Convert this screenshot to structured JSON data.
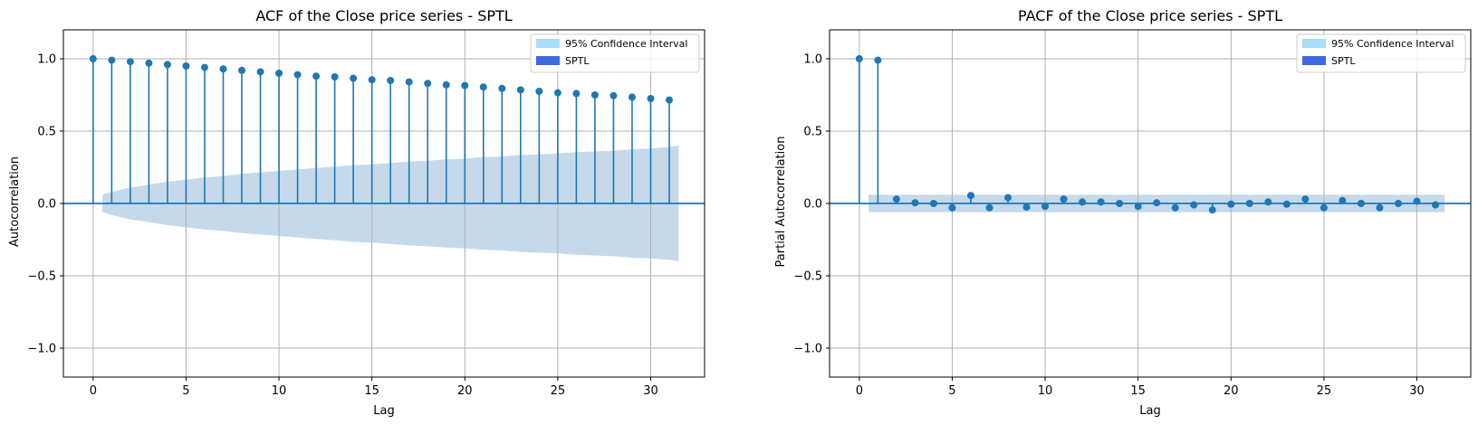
{
  "chart_data": [
    {
      "type": "stem",
      "title": "ACF of the Close price series - SPTL",
      "xlabel": "Lag",
      "ylabel": "Autocorrelation",
      "xlim": [
        -1.6,
        32.9
      ],
      "ylim": [
        -1.2,
        1.2
      ],
      "xticks": [
        0,
        5,
        10,
        15,
        20,
        25,
        30
      ],
      "yticks": [
        -1.0,
        -0.5,
        0.0,
        0.5,
        1.0
      ],
      "ytick_labels": [
        "−1.0",
        "−0.5",
        "0.0",
        "0.5",
        "1.0"
      ],
      "grid": true,
      "legend": {
        "placement": "top-right",
        "entries": [
          "95% Confidence Interval",
          "SPTL"
        ]
      },
      "colors": {
        "stem": "#1f77b4",
        "band": "#c5d9eb",
        "legend_ci": "#a8def7",
        "legend_series": "#4169e1"
      },
      "series": [
        {
          "name": "SPTL",
          "x": [
            0,
            1,
            2,
            3,
            4,
            5,
            6,
            7,
            8,
            9,
            10,
            11,
            12,
            13,
            14,
            15,
            16,
            17,
            18,
            19,
            20,
            21,
            22,
            23,
            24,
            25,
            26,
            27,
            28,
            29,
            30,
            31
          ],
          "values": [
            1.0,
            0.99,
            0.98,
            0.97,
            0.96,
            0.95,
            0.94,
            0.93,
            0.92,
            0.91,
            0.9,
            0.89,
            0.88,
            0.875,
            0.865,
            0.855,
            0.85,
            0.84,
            0.83,
            0.82,
            0.815,
            0.805,
            0.795,
            0.785,
            0.775,
            0.765,
            0.76,
            0.75,
            0.745,
            0.735,
            0.725,
            0.715
          ]
        }
      ],
      "confidence_band": {
        "name": "95% Confidence Interval",
        "x": [
          0.5,
          1,
          2,
          3,
          4,
          5,
          6,
          7,
          8,
          9,
          10,
          11,
          12,
          13,
          14,
          15,
          16,
          17,
          18,
          19,
          20,
          21,
          22,
          23,
          24,
          25,
          26,
          27,
          28,
          29,
          30,
          31,
          31.5
        ],
        "upper": [
          0.06,
          0.08,
          0.11,
          0.13,
          0.15,
          0.165,
          0.18,
          0.19,
          0.205,
          0.215,
          0.225,
          0.235,
          0.245,
          0.255,
          0.265,
          0.27,
          0.28,
          0.29,
          0.295,
          0.305,
          0.31,
          0.32,
          0.325,
          0.335,
          0.34,
          0.345,
          0.355,
          0.36,
          0.365,
          0.375,
          0.38,
          0.39,
          0.4
        ]
      }
    },
    {
      "type": "stem",
      "title": "PACF of the Close price series - SPTL",
      "xlabel": "Lag",
      "ylabel": "Partial Autocorrelation",
      "xlim": [
        -1.6,
        32.9
      ],
      "ylim": [
        -1.2,
        1.2
      ],
      "xticks": [
        0,
        5,
        10,
        15,
        20,
        25,
        30
      ],
      "yticks": [
        -1.0,
        -0.5,
        0.0,
        0.5,
        1.0
      ],
      "ytick_labels": [
        "−1.0",
        "−0.5",
        "0.0",
        "0.5",
        "1.0"
      ],
      "grid": true,
      "legend": {
        "placement": "top-right",
        "entries": [
          "95% Confidence Interval",
          "SPTL"
        ]
      },
      "colors": {
        "stem": "#1f77b4",
        "band": "#c5d9eb",
        "legend_ci": "#a8def7",
        "legend_series": "#4169e1"
      },
      "series": [
        {
          "name": "SPTL",
          "x": [
            0,
            1,
            2,
            3,
            4,
            5,
            6,
            7,
            8,
            9,
            10,
            11,
            12,
            13,
            14,
            15,
            16,
            17,
            18,
            19,
            20,
            21,
            22,
            23,
            24,
            25,
            26,
            27,
            28,
            29,
            30,
            31
          ],
          "values": [
            1.0,
            0.99,
            0.03,
            0.005,
            0.0,
            -0.03,
            0.055,
            -0.03,
            0.04,
            -0.025,
            -0.02,
            0.03,
            0.01,
            0.01,
            0.0,
            -0.02,
            0.005,
            -0.03,
            -0.01,
            -0.045,
            -0.005,
            0.0,
            0.01,
            -0.005,
            0.03,
            -0.03,
            0.02,
            0.0,
            -0.03,
            0.0,
            0.015,
            -0.01
          ]
        }
      ],
      "confidence_band": {
        "name": "95% Confidence Interval",
        "x": [
          0.5,
          31.5
        ],
        "upper": [
          0.06,
          0.06
        ]
      }
    }
  ]
}
